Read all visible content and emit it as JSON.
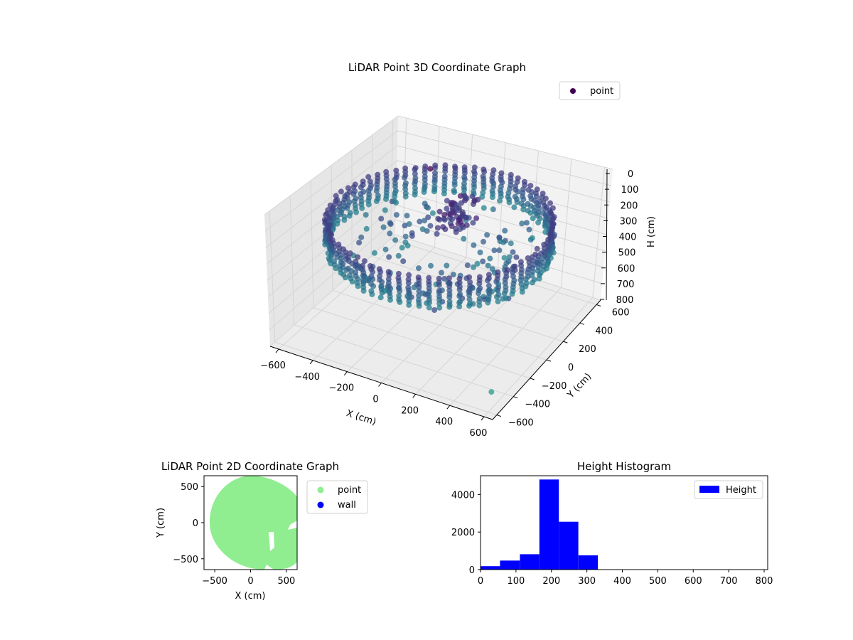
{
  "chart_data": [
    {
      "type": "scatter",
      "projection": "3d",
      "title": "LiDAR Point 3D Coordinate Graph",
      "xlabel": "X (cm)",
      "ylabel": "Y (cm)",
      "zlabel": "H (cm)",
      "xlim": [
        -650,
        650
      ],
      "ylim": [
        -650,
        650
      ],
      "zlim": [
        800,
        0
      ],
      "z_inverted": true,
      "x_ticks": [
        -600,
        -400,
        -200,
        0,
        200,
        400,
        600
      ],
      "y_ticks": [
        -600,
        -400,
        -200,
        0,
        200,
        400,
        600
      ],
      "z_ticks": [
        0,
        100,
        200,
        300,
        400,
        500,
        600,
        700,
        800
      ],
      "colormap": "viridis",
      "legend": {
        "entries": [
          "point"
        ],
        "placement": "top-right"
      },
      "series": [
        {
          "name": "point",
          "description_shape": "ring",
          "radius": 580,
          "h_min": 150,
          "h_max": 330
        }
      ],
      "grid": true
    },
    {
      "type": "scatter",
      "title": "LiDAR Point 2D Coordinate Graph",
      "xlabel": "X (cm)",
      "ylabel": "Y (cm)",
      "xlim": [
        -650,
        650
      ],
      "ylim": [
        -650,
        650
      ],
      "x_ticks": [
        -500,
        0,
        500
      ],
      "y_ticks": [
        -500,
        0,
        500
      ],
      "legend": {
        "entries": [
          "point",
          "wall"
        ],
        "placement": "outside-right"
      },
      "series": [
        {
          "name": "point",
          "color": "#90ee90",
          "shape": "disk",
          "center": [
            0,
            0
          ],
          "radius": 600
        },
        {
          "name": "wall",
          "color": "#0000ff"
        }
      ],
      "grid": false
    },
    {
      "type": "bar",
      "title": "Height Histogram",
      "xlabel": "",
      "ylabel": "",
      "xlim": [
        0,
        810
      ],
      "ylim": [
        0,
        5000
      ],
      "x_ticks": [
        0,
        100,
        200,
        300,
        400,
        500,
        600,
        700,
        800
      ],
      "y_ticks": [
        0,
        2000,
        4000
      ],
      "bins": [
        [
          0,
          55
        ],
        [
          55,
          111
        ],
        [
          111,
          166
        ],
        [
          166,
          221
        ],
        [
          221,
          276
        ],
        [
          276,
          331
        ],
        [
          331,
          386
        ],
        [
          386,
          441
        ],
        [
          441,
          496
        ],
        [
          496,
          551
        ],
        [
          551,
          606
        ],
        [
          606,
          661
        ],
        [
          661,
          716
        ],
        [
          716,
          771
        ]
      ],
      "values": [
        180,
        480,
        820,
        4800,
        2550,
        760,
        0,
        0,
        0,
        0,
        0,
        0,
        0,
        5
      ],
      "color": "#0000ff",
      "legend": {
        "entries": [
          "Height"
        ],
        "placement": "top-right"
      },
      "grid": false
    }
  ]
}
